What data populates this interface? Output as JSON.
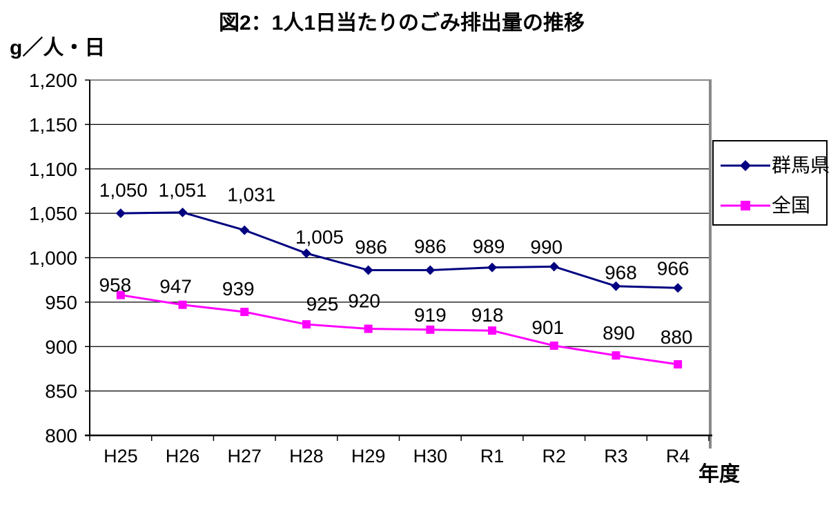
{
  "page": {
    "background": "#ffffff"
  },
  "chart_data": {
    "type": "line",
    "title": "図2：1人1日当たりのごみ排出量の推移",
    "ylabel": "g／人・日",
    "xlabel": "年度",
    "categories": [
      "H25",
      "H26",
      "H27",
      "H28",
      "H29",
      "H30",
      "R1",
      "R2",
      "R3",
      "R4"
    ],
    "ylim": [
      800,
      1200
    ],
    "ytick_step": 50,
    "ytick_labels": [
      "800",
      "850",
      "900",
      "950",
      "1,000",
      "1,050",
      "1,100",
      "1,150",
      "1,200"
    ],
    "grid": true,
    "legend_position": "right",
    "axis_color": "#000000",
    "plot_shadow_color": "#888888",
    "series": [
      {
        "name": "群馬県",
        "color": "#000080",
        "marker": "diamond",
        "values": [
          1050,
          1051,
          1031,
          1005,
          986,
          986,
          989,
          990,
          968,
          966
        ],
        "labels": [
          "1,050",
          "1,051",
          "1,031",
          "1,005",
          "986",
          "986",
          "989",
          "990",
          "968",
          "966"
        ],
        "label_dx": [
          4,
          0,
          10,
          19,
          4,
          0,
          -5,
          -11,
          7,
          -7
        ],
        "label_dy": [
          -24,
          -23,
          -42,
          -14,
          -24,
          -25,
          -21,
          -19,
          -10,
          -19
        ]
      },
      {
        "name": "全国",
        "color": "#ff00ff",
        "marker": "square",
        "values": [
          958,
          947,
          939,
          925,
          920,
          919,
          918,
          901,
          890,
          880
        ],
        "labels": [
          "958",
          "947",
          "939",
          "925",
          "920",
          "919",
          "918",
          "901",
          "890",
          "880"
        ],
        "label_dx": [
          -8,
          -10,
          -9,
          23,
          -6,
          0,
          -7,
          -9,
          4,
          -2
        ],
        "label_dy": [
          -5,
          -17,
          -24,
          -20,
          -31,
          -12,
          -13,
          -17,
          -23,
          -30
        ]
      }
    ]
  }
}
